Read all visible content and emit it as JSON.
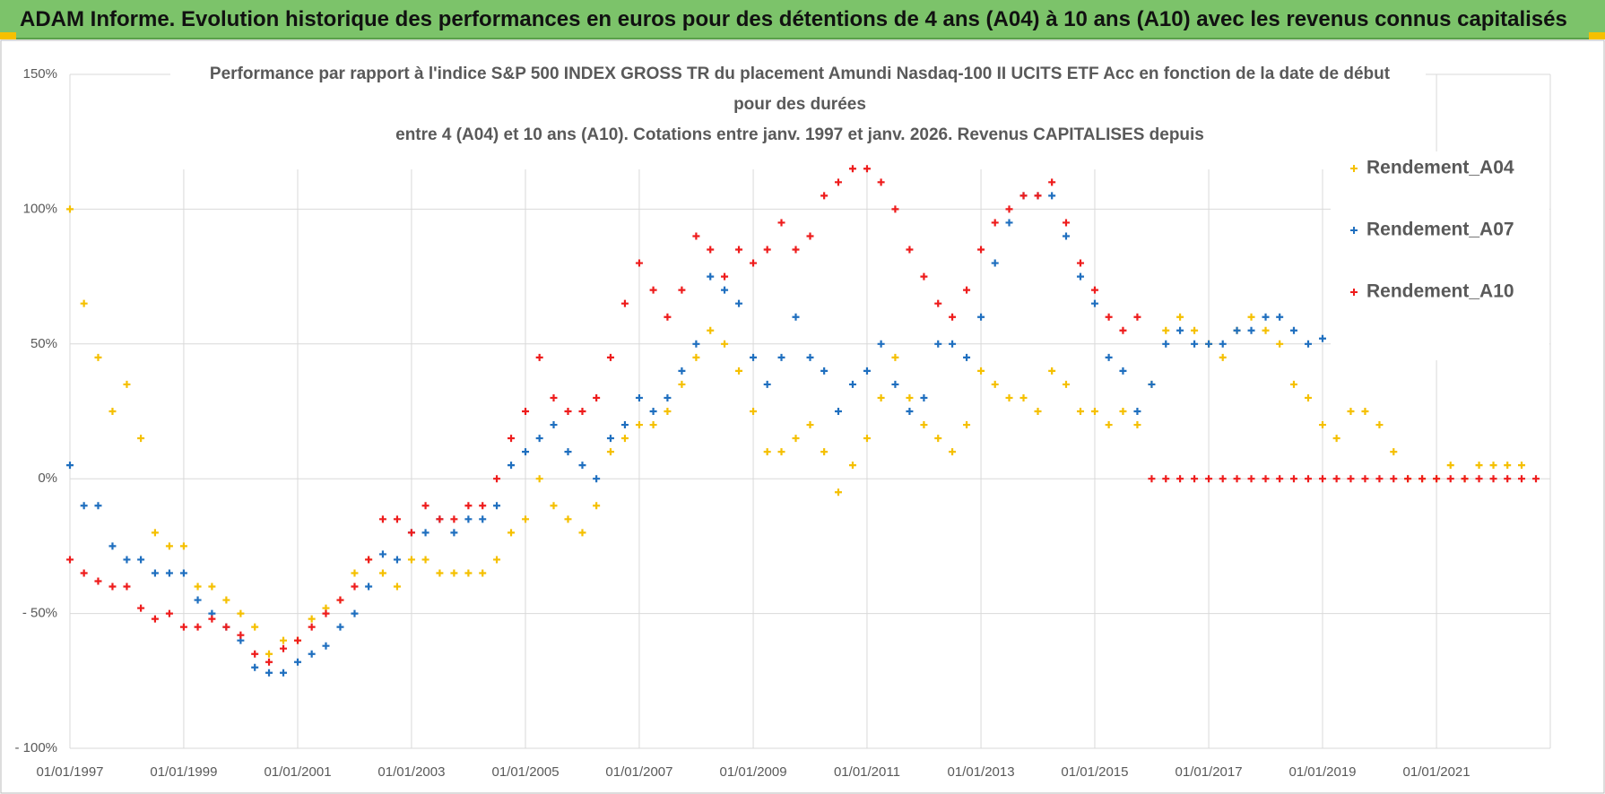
{
  "header": {
    "title": "ADAM Informe. Evolution historique des performances en euros pour des détentions de 4 ans (A04) à 10 ans (A10) avec les revenus connus capitalisés"
  },
  "chart_data": {
    "type": "scatter",
    "title": [
      "Performance par rapport à l'indice S&P 500 INDEX GROSS TR  du placement Amundi Nasdaq-100 II UCITS ETF Acc en fonction de la date de début",
      "pour des durées",
      "entre 4 (A04) et 10 ans (A10). Cotations entre janv. 1997 et janv. 2026. Revenus CAPITALISES depuis"
    ],
    "x": [
      "01/01/1997",
      "01/04/1997",
      "01/07/1997",
      "01/10/1997",
      "01/01/1998",
      "01/04/1998",
      "01/07/1998",
      "01/10/1998",
      "01/01/1999",
      "01/04/1999",
      "01/07/1999",
      "01/10/1999",
      "01/01/2000",
      "01/04/2000",
      "01/07/2000",
      "01/10/2000",
      "01/01/2001",
      "01/04/2001",
      "01/07/2001",
      "01/10/2001",
      "01/01/2002",
      "01/04/2002",
      "01/07/2002",
      "01/10/2002",
      "01/01/2003",
      "01/04/2003",
      "01/07/2003",
      "01/10/2003",
      "01/01/2004",
      "01/04/2004",
      "01/07/2004",
      "01/10/2004",
      "01/01/2005",
      "01/04/2005",
      "01/07/2005",
      "01/10/2005",
      "01/01/2006",
      "01/04/2006",
      "01/07/2006",
      "01/10/2006",
      "01/01/2007",
      "01/04/2007",
      "01/07/2007",
      "01/10/2007",
      "01/01/2008",
      "01/04/2008",
      "01/07/2008",
      "01/10/2008",
      "01/01/2009",
      "01/04/2009",
      "01/07/2009",
      "01/10/2009",
      "01/01/2010",
      "01/04/2010",
      "01/07/2010",
      "01/10/2010",
      "01/01/2011",
      "01/04/2011",
      "01/07/2011",
      "01/10/2011",
      "01/01/2012",
      "01/04/2012",
      "01/07/2012",
      "01/10/2012",
      "01/01/2013",
      "01/04/2013",
      "01/07/2013",
      "01/10/2013",
      "01/01/2014",
      "01/04/2014",
      "01/07/2014",
      "01/10/2014",
      "01/01/2015",
      "01/04/2015",
      "01/07/2015",
      "01/10/2015",
      "01/01/2016",
      "01/04/2016",
      "01/07/2016",
      "01/10/2016",
      "01/01/2017",
      "01/04/2017",
      "01/07/2017",
      "01/10/2017",
      "01/01/2018",
      "01/04/2018",
      "01/07/2018",
      "01/10/2018",
      "01/01/2019",
      "01/04/2019",
      "01/07/2019",
      "01/10/2019",
      "01/01/2020",
      "01/04/2020",
      "01/07/2020",
      "01/10/2020",
      "01/01/2021",
      "01/04/2021",
      "01/07/2021",
      "01/10/2021",
      "01/01/2022",
      "01/04/2022",
      "01/07/2022",
      "01/10/2022"
    ],
    "series": [
      {
        "name": "Rendement_A04",
        "color": "#f5c000",
        "values": [
          100,
          65,
          45,
          25,
          35,
          15,
          -20,
          -25,
          -25,
          -40,
          -40,
          -45,
          -50,
          -55,
          -65,
          -60,
          -60,
          -52,
          -48,
          -45,
          -35,
          -30,
          -35,
          -40,
          -30,
          -30,
          -35,
          -35,
          -35,
          -35,
          -30,
          -20,
          -15,
          0,
          -10,
          -15,
          -20,
          -10,
          10,
          15,
          20,
          20,
          25,
          35,
          45,
          55,
          50,
          40,
          25,
          10,
          10,
          15,
          20,
          10,
          -5,
          5,
          15,
          30,
          45,
          30,
          20,
          15,
          10,
          20,
          40,
          35,
          30,
          30,
          25,
          40,
          35,
          25,
          25,
          20,
          25,
          20,
          35,
          55,
          60,
          55,
          50,
          45,
          55,
          60,
          55,
          50,
          35,
          30,
          20,
          15,
          25,
          25,
          20,
          10,
          0,
          0,
          0,
          5,
          0,
          5,
          5,
          5,
          5,
          null
        ]
      },
      {
        "name": "Rendement_A07",
        "color": "#1f6fbf",
        "values": [
          5,
          -10,
          -10,
          -25,
          -30,
          -30,
          -35,
          -35,
          -35,
          -45,
          -50,
          -55,
          -60,
          -70,
          -72,
          -72,
          -68,
          -65,
          -62,
          -55,
          -50,
          -40,
          -28,
          -30,
          -20,
          -20,
          -15,
          -20,
          -15,
          -15,
          -10,
          5,
          10,
          15,
          20,
          10,
          5,
          0,
          15,
          20,
          30,
          25,
          30,
          40,
          50,
          75,
          70,
          65,
          45,
          35,
          45,
          60,
          45,
          40,
          25,
          35,
          40,
          50,
          35,
          25,
          30,
          50,
          50,
          45,
          60,
          80,
          95,
          105,
          105,
          105,
          90,
          75,
          65,
          45,
          40,
          25,
          35,
          50,
          55,
          50,
          50,
          50,
          55,
          55,
          60,
          60,
          55,
          50,
          52,
          null,
          null,
          null,
          null,
          null,
          null,
          null,
          null,
          null,
          null,
          null,
          null,
          null,
          null,
          null
        ]
      },
      {
        "name": "Rendement_A10",
        "color": "#ee1c1c",
        "values": [
          -30,
          -35,
          -38,
          -40,
          -40,
          -48,
          -52,
          -50,
          -55,
          -55,
          -52,
          -55,
          -58,
          -65,
          -68,
          -63,
          -60,
          -55,
          -50,
          -45,
          -40,
          -30,
          -15,
          -15,
          -20,
          -10,
          -15,
          -15,
          -10,
          -10,
          0,
          15,
          25,
          45,
          30,
          25,
          25,
          30,
          45,
          65,
          80,
          70,
          60,
          70,
          90,
          85,
          75,
          85,
          80,
          85,
          95,
          85,
          90,
          105,
          110,
          115,
          115,
          110,
          100,
          85,
          75,
          65,
          60,
          70,
          85,
          95,
          100,
          105,
          105,
          110,
          95,
          80,
          70,
          60,
          55,
          60,
          0,
          0,
          0,
          0,
          0,
          0,
          0,
          0,
          0,
          0,
          0,
          0,
          0,
          0,
          0,
          0,
          0,
          0,
          0,
          0,
          0,
          0,
          0,
          0,
          0,
          0,
          0,
          0
        ]
      }
    ],
    "xlim": [
      "01/01/1997",
      "01/01/2023"
    ],
    "xticks": [
      "01/01/1997",
      "01/01/1999",
      "01/01/2001",
      "01/01/2003",
      "01/01/2005",
      "01/01/2007",
      "01/01/2009",
      "01/01/2011",
      "01/01/2013",
      "01/01/2015",
      "01/01/2017",
      "01/01/2019",
      "01/01/2021"
    ],
    "ylim": [
      -100,
      150
    ],
    "yticks": [
      {
        "value": -100,
        "label": "- 100%"
      },
      {
        "value": -50,
        "label": "- 50%"
      },
      {
        "value": 0,
        "label": "0%"
      },
      {
        "value": 50,
        "label": "50%"
      },
      {
        "value": 100,
        "label": "100%"
      },
      {
        "value": 150,
        "label": "150%"
      }
    ],
    "grid": true,
    "legend": "upper right"
  }
}
